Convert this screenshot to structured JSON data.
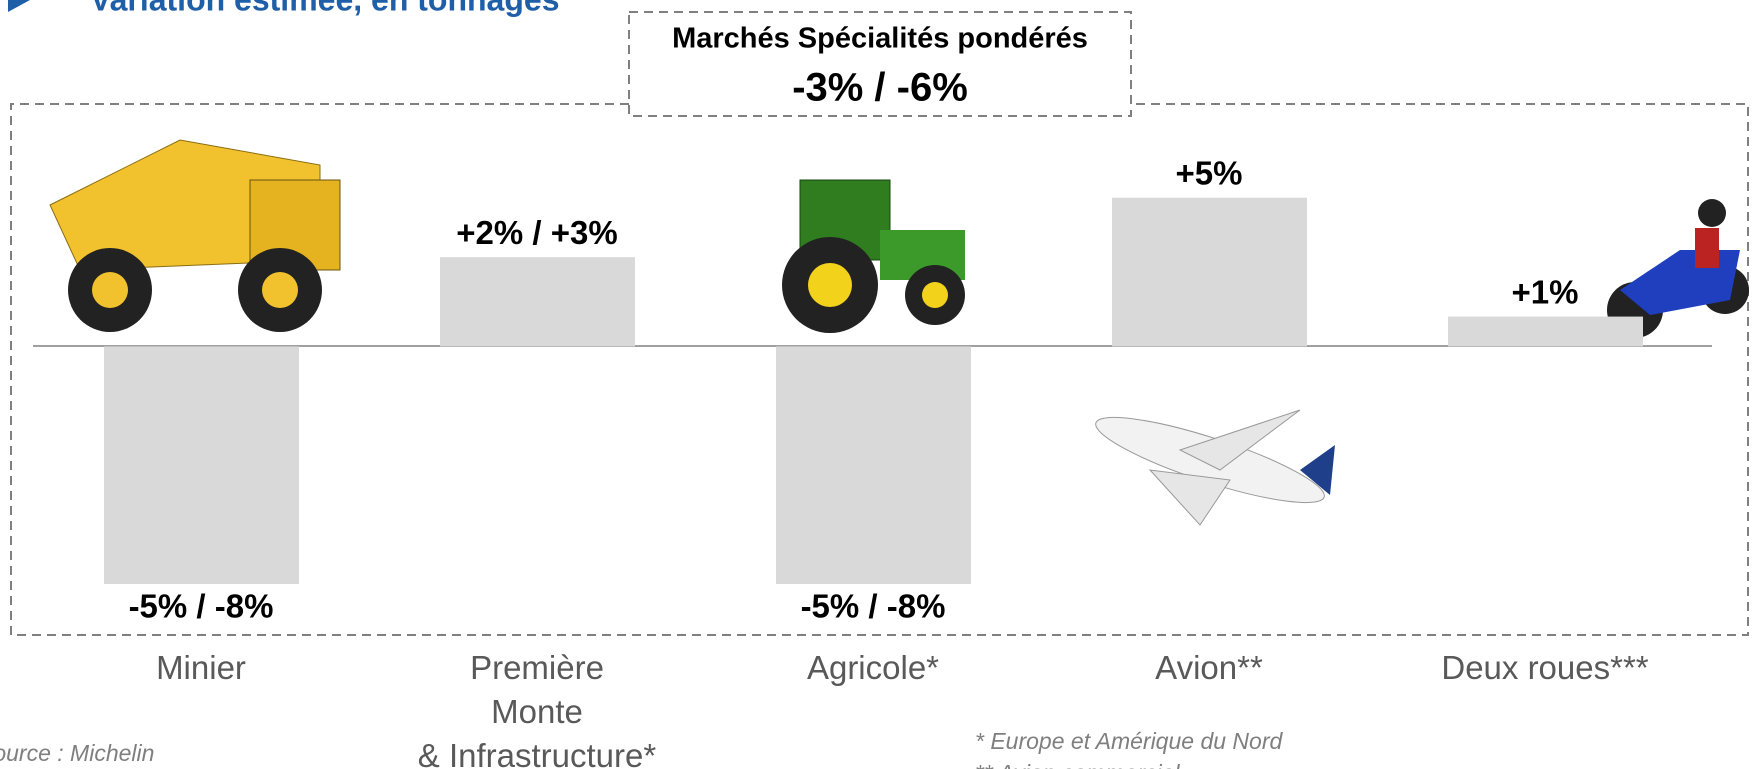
{
  "chart_data": {
    "type": "bar",
    "title": "Variation estimée, en tonnages",
    "subtitle": "Marchés Spécialités pondérés",
    "headline": "-3% / -6%",
    "categories": [
      "Minier",
      "Première\nMonte\n& Infrastructure*",
      "Agricole*",
      "Avion**",
      "Deux roues***"
    ],
    "values": [
      -8,
      3,
      -8,
      5,
      1
    ],
    "value_labels": [
      "-5% / -8%",
      "+2% / +3%",
      "-5% / -8%",
      "+5%",
      "+1%"
    ],
    "color": "#d9d9d9",
    "ylim": [
      -8,
      6
    ],
    "source": "Source : Michelin",
    "notes": [
      "* Europe et Amérique du Nord",
      "** Avion commercial"
    ]
  }
}
